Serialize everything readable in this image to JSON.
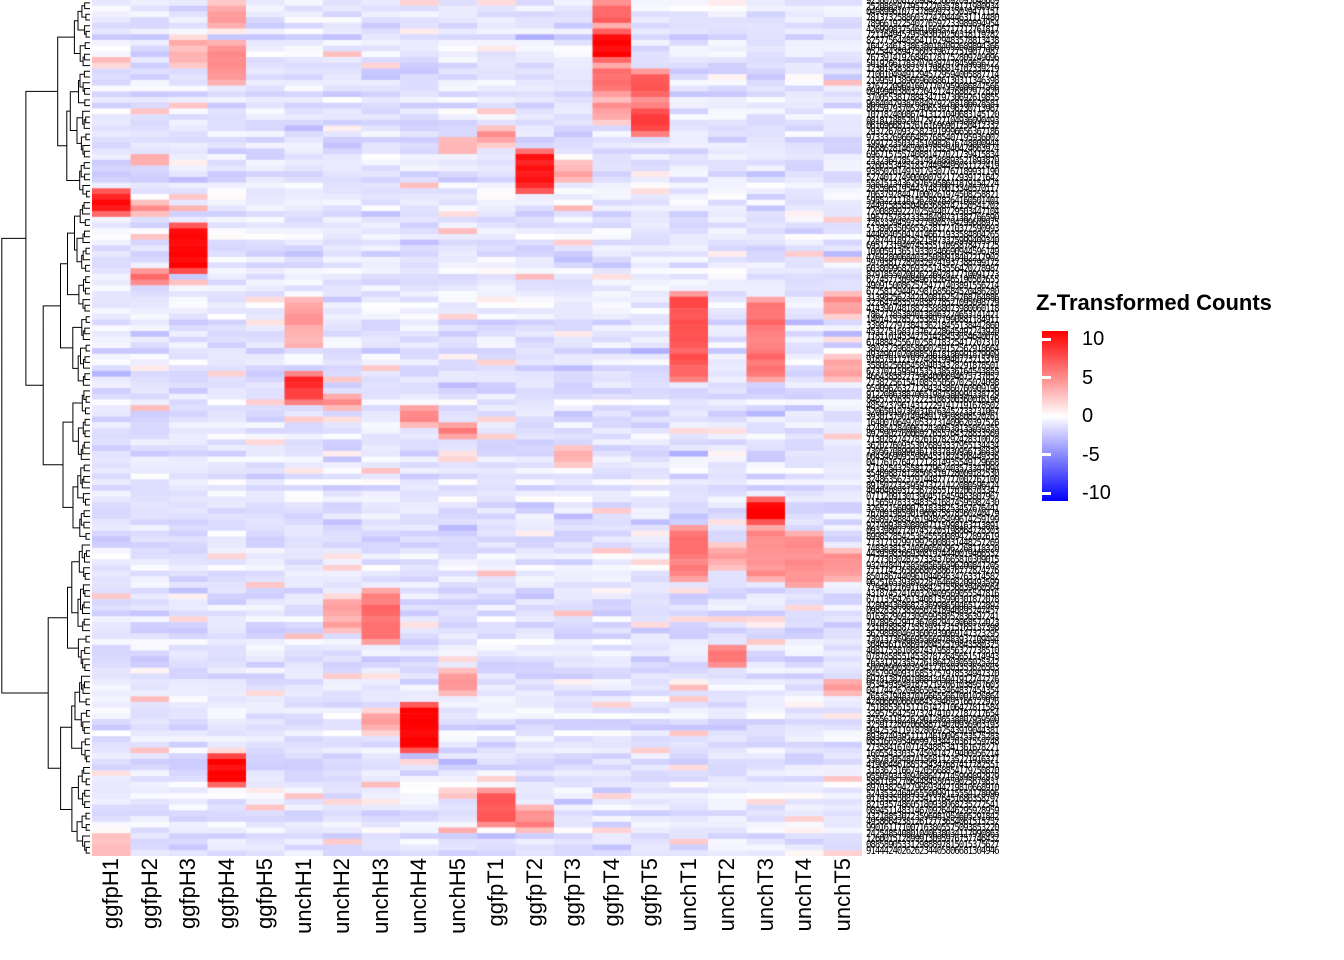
{
  "figure": {
    "background": "#FFFFFF",
    "description": "Clustered heatmap of z-transformed counts with row dendrogram, illegible row gene-id labels, rotated sample column labels and a red-white-blue color legend"
  },
  "legend": {
    "title": "Z-Transformed Counts",
    "ticks": [
      "10",
      "5",
      "0",
      "-5",
      "-10"
    ],
    "tick_values": [
      10,
      5,
      0,
      -5,
      -10
    ],
    "high_color": "#FF0000",
    "mid_color": "#FFFFFF",
    "low_color": "#0000FF"
  },
  "chart_data": {
    "type": "heatmap",
    "title": "Z-Transformed Counts",
    "columns": [
      "ggfpH1",
      "ggfpH2",
      "ggfpH3",
      "ggfpH4",
      "ggfpH5",
      "unchH1",
      "unchH2",
      "unchH3",
      "unchH4",
      "unchH5",
      "ggfpT1",
      "ggfpT2",
      "ggfpT3",
      "ggfpT4",
      "ggfpT5",
      "unchT1",
      "unchT2",
      "unchT3",
      "unchT4",
      "unchT5"
    ],
    "n_rows": 150,
    "row_labels_note": "row gene-id labels are rendered but too small to read (dense numeric ids)",
    "value_range": [
      -10,
      10
    ],
    "colormap": {
      "low": "#0000FF",
      "mid": "#FFFFFF",
      "high": "#FF0000"
    },
    "baseline": {
      "mean": -0.8,
      "spread": 1.4,
      "note": "background cells hover slightly below 0 (pale lavender) with scattered pale pink cells"
    },
    "seed": 42,
    "dendrogram": "hierarchical clustering of rows, drawn on left",
    "hotspots": [
      {
        "col": 3,
        "row_start": 0,
        "row_end": 4,
        "value": 4
      },
      {
        "col": 13,
        "row_start": 0,
        "row_end": 4,
        "value": 6
      },
      {
        "col": 13,
        "row_start": 5,
        "row_end": 10,
        "value": 10
      },
      {
        "col": 2,
        "row_start": 6,
        "row_end": 11,
        "value": 3
      },
      {
        "col": 3,
        "row_start": 7,
        "row_end": 14,
        "value": 4
      },
      {
        "col": 13,
        "row_start": 11,
        "row_end": 16,
        "value": 5
      },
      {
        "col": 14,
        "row_start": 12,
        "row_end": 17,
        "value": 6
      },
      {
        "col": 14,
        "row_start": 18,
        "row_end": 23,
        "value": 7
      },
      {
        "col": 13,
        "row_start": 17,
        "row_end": 21,
        "value": 4
      },
      {
        "col": 10,
        "row_start": 22,
        "row_end": 25,
        "value": 4
      },
      {
        "col": 9,
        "row_start": 24,
        "row_end": 26,
        "value": 3.5
      },
      {
        "col": 11,
        "row_start": 26,
        "row_end": 33,
        "value": 9
      },
      {
        "col": 1,
        "row_start": 27,
        "row_end": 28,
        "value": 5
      },
      {
        "col": 12,
        "row_start": 28,
        "row_end": 31,
        "value": 3
      },
      {
        "col": 0,
        "row_start": 33,
        "row_end": 37,
        "value": 9
      },
      {
        "col": 1,
        "row_start": 35,
        "row_end": 37,
        "value": 4
      },
      {
        "col": 2,
        "row_start": 39,
        "row_end": 47,
        "value": 10
      },
      {
        "col": 1,
        "row_start": 47,
        "row_end": 49,
        "value": 6
      },
      {
        "col": 15,
        "row_start": 51,
        "row_end": 66,
        "value": 6.5
      },
      {
        "col": 17,
        "row_start": 52,
        "row_end": 66,
        "value": 5.5
      },
      {
        "col": 19,
        "row_start": 51,
        "row_end": 55,
        "value": 4
      },
      {
        "col": 5,
        "row_start": 52,
        "row_end": 60,
        "value": 3.5
      },
      {
        "col": 19,
        "row_start": 62,
        "row_end": 66,
        "value": 4
      },
      {
        "col": 5,
        "row_start": 65,
        "row_end": 70,
        "value": 8
      },
      {
        "col": 6,
        "row_start": 69,
        "row_end": 71,
        "value": 4.5
      },
      {
        "col": 8,
        "row_start": 71,
        "row_end": 74,
        "value": 5
      },
      {
        "col": 9,
        "row_start": 74,
        "row_end": 76,
        "value": 4.5
      },
      {
        "col": 12,
        "row_start": 78,
        "row_end": 81,
        "value": 3
      },
      {
        "col": 17,
        "row_start": 87,
        "row_end": 91,
        "value": 10
      },
      {
        "col": 15,
        "row_start": 92,
        "row_end": 101,
        "value": 5
      },
      {
        "col": 17,
        "row_start": 92,
        "row_end": 101,
        "value": 4.5
      },
      {
        "col": 18,
        "row_start": 93,
        "row_end": 102,
        "value": 4.5
      },
      {
        "col": 19,
        "row_start": 96,
        "row_end": 101,
        "value": 4
      },
      {
        "col": 16,
        "row_start": 95,
        "row_end": 99,
        "value": 3.5
      },
      {
        "col": 7,
        "row_start": 103,
        "row_end": 112,
        "value": 5.5
      },
      {
        "col": 6,
        "row_start": 104,
        "row_end": 110,
        "value": 3.5
      },
      {
        "col": 16,
        "row_start": 113,
        "row_end": 116,
        "value": 6
      },
      {
        "col": 9,
        "row_start": 117,
        "row_end": 121,
        "value": 4.5
      },
      {
        "col": 19,
        "row_start": 119,
        "row_end": 121,
        "value": 4.5
      },
      {
        "col": 8,
        "row_start": 123,
        "row_end": 131,
        "value": 10
      },
      {
        "col": 7,
        "row_start": 124,
        "row_end": 128,
        "value": 3.5
      },
      {
        "col": 3,
        "row_start": 132,
        "row_end": 137,
        "value": 10
      },
      {
        "col": 10,
        "row_start": 138,
        "row_end": 144,
        "value": 7
      },
      {
        "col": 11,
        "row_start": 141,
        "row_end": 145,
        "value": 5
      },
      {
        "col": 0,
        "row_start": 146,
        "row_end": 149,
        "value": 3
      }
    ]
  }
}
